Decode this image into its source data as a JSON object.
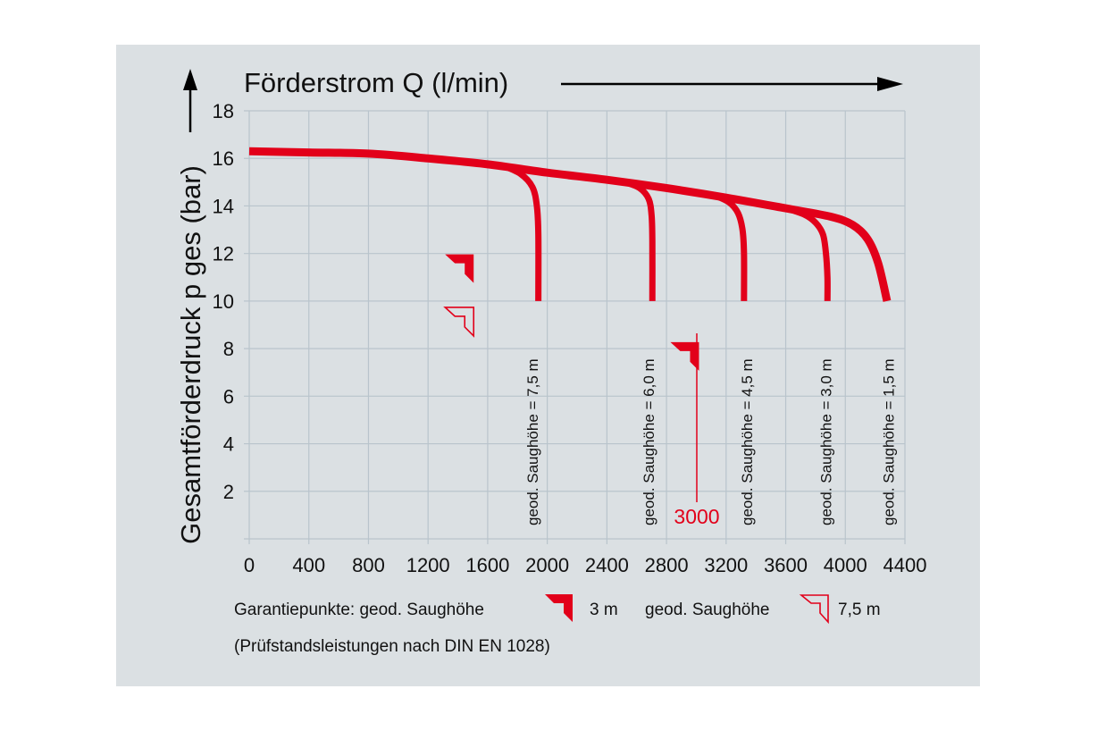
{
  "chart_data": {
    "type": "line",
    "title": "Förderstrom Q (l/min)",
    "xlabel": "Förderstrom Q (l/min)",
    "ylabel": "Gesamtförderdruck p ges (bar)",
    "xlim": [
      0,
      4400
    ],
    "ylim": [
      0,
      18
    ],
    "x_ticks": [
      0,
      400,
      800,
      1200,
      1600,
      2000,
      2400,
      2800,
      3200,
      3600,
      4000,
      4400
    ],
    "y_ticks": [
      2,
      4,
      6,
      8,
      10,
      12,
      14,
      16,
      18
    ],
    "y_tick_labels_shown": [
      "2",
      "4",
      "6",
      "8",
      "10",
      "12",
      "14",
      "16",
      "18"
    ],
    "x_tick_labels_shown": [
      "0",
      "400",
      "800",
      "1200",
      "1600",
      "2000",
      "2400",
      "2800",
      "3200",
      "3600",
      "4000",
      "4400"
    ],
    "grid": true,
    "line_color": "#e2001a",
    "series": [
      {
        "name": "geod. Saughöhe = 1,5 m",
        "x": [
          0,
          400,
          800,
          1200,
          1600,
          2000,
          2400,
          2800,
          3200,
          3600,
          3900,
          4050,
          4150,
          4220,
          4280
        ],
        "y": [
          16.3,
          16.25,
          16.2,
          16.0,
          15.75,
          15.4,
          15.1,
          14.75,
          14.35,
          13.9,
          13.55,
          13.2,
          12.6,
          11.6,
          10.0
        ]
      },
      {
        "name": "geod. Saughöhe = 3,0 m",
        "x": [
          3600,
          3720,
          3800,
          3850,
          3870,
          3880,
          3880
        ],
        "y": [
          13.9,
          13.65,
          13.3,
          12.8,
          12.0,
          11.0,
          10.0
        ]
      },
      {
        "name": "geod. Saughöhe = 4,5 m",
        "x": [
          3120,
          3220,
          3280,
          3310,
          3320,
          3320
        ],
        "y": [
          14.45,
          14.15,
          13.7,
          13.0,
          12.0,
          10.0
        ]
      },
      {
        "name": "geod. Saughöhe = 6,0 m",
        "x": [
          2520,
          2620,
          2680,
          2700,
          2705,
          2705
        ],
        "y": [
          15.0,
          14.75,
          14.3,
          13.6,
          12.5,
          10.0
        ]
      },
      {
        "name": "geod. Saughöhe = 7,5 m",
        "x": [
          1700,
          1820,
          1900,
          1930,
          1940,
          1940
        ],
        "y": [
          15.7,
          15.35,
          14.8,
          14.0,
          12.8,
          10.0
        ]
      }
    ],
    "curve_labels": [
      {
        "text": "geod. Saughöhe = 7,5 m",
        "x": 1900
      },
      {
        "text": "geod. Saughöhe = 6,0 m",
        "x": 2680
      },
      {
        "text": "geod. Saughöhe = 4,5 m",
        "x": 3340
      },
      {
        "text": "geod. Saughöhe = 3,0 m",
        "x": 3870
      },
      {
        "text": "geod. Saughöhe = 1,5 m",
        "x": 4290
      }
    ],
    "guarantee_points": [
      {
        "type": "filled",
        "label": "3 m",
        "x": 1500,
        "y": 12.0
      },
      {
        "type": "outline",
        "label": "7,5 m",
        "x": 1500,
        "y": 10.0
      },
      {
        "type": "filled",
        "label": "3 m",
        "x": 3000,
        "y": 10.0
      }
    ],
    "annotation": {
      "text": "3000",
      "color": "#e2001a",
      "x": 3000
    }
  },
  "legend": {
    "prefix": "Garantiepunkte: geod. Saughöhe",
    "item1_label": "3 m",
    "middle": "geod. Saughöhe",
    "item2_label": "7,5 m",
    "note": "(Prüfstandsleistungen nach DIN EN 1028)"
  }
}
